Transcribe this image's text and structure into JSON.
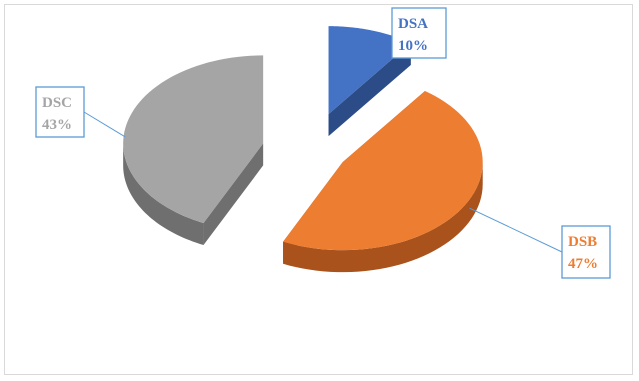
{
  "chart_data": {
    "type": "pie",
    "style": "3d-exploded",
    "slices": [
      {
        "label": "DSA",
        "value": 10,
        "percent_label": "10%",
        "color": "#4472c4",
        "side_color": "#2b4c87",
        "label_color": "#4472c4"
      },
      {
        "label": "DSB",
        "value": 47,
        "percent_label": "47%",
        "color": "#ed7d31",
        "side_color": "#a9521b",
        "label_color": "#ed7d31"
      },
      {
        "label": "DSC",
        "value": 43,
        "percent_label": "43%",
        "color": "#a5a5a5",
        "side_color": "#6f6f6f",
        "label_color": "#a5a5a5"
      }
    ],
    "callout_border_color": "#5b9bd5",
    "legend": "none"
  }
}
